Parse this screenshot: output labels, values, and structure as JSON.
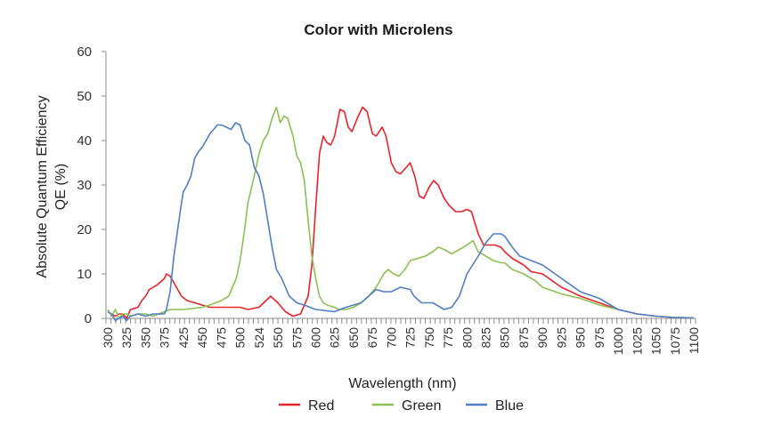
{
  "chart_data": {
    "type": "line",
    "title": "Color with Microlens",
    "xlabel": "Wavelength (nm)",
    "ylabel_line1": "Absolute Quantum Efficiency",
    "ylabel_line2": "QE (%)",
    "ylim": [
      0,
      60
    ],
    "yticks": [
      "0",
      "10",
      "20",
      "30",
      "40",
      "50",
      "60"
    ],
    "ytick_values": [
      0,
      10,
      20,
      30,
      40,
      50,
      60
    ],
    "x_tick_labels": [
      "300",
      "325",
      "350",
      "375",
      "425",
      "450",
      "475",
      "500",
      "524",
      "550",
      "575",
      "600",
      "625",
      "650",
      "675",
      "700",
      "725",
      "750",
      "775",
      "800",
      "825",
      "850",
      "875",
      "900",
      "925",
      "950",
      "975",
      "1000",
      "1025",
      "1050",
      "1075",
      "1100"
    ],
    "x_tick_values": [
      300,
      325,
      350,
      375,
      425,
      450,
      475,
      500,
      524,
      550,
      575,
      600,
      625,
      650,
      675,
      700,
      725,
      750,
      775,
      800,
      825,
      850,
      875,
      900,
      925,
      950,
      975,
      1000,
      1025,
      1050,
      1075,
      1100
    ],
    "grid": false,
    "legend_position": "bottom",
    "series": [
      {
        "name": "Red",
        "color": "#e8242a",
        "points": [
          [
            300,
            1.5
          ],
          [
            305,
            1
          ],
          [
            310,
            0.5
          ],
          [
            315,
            1
          ],
          [
            320,
            1
          ],
          [
            325,
            0
          ],
          [
            330,
            2
          ],
          [
            340,
            2.5
          ],
          [
            345,
            4
          ],
          [
            350,
            5
          ],
          [
            355,
            6.5
          ],
          [
            360,
            7
          ],
          [
            365,
            7.5
          ],
          [
            375,
            9
          ],
          [
            380,
            10
          ],
          [
            390,
            9.5
          ],
          [
            400,
            8
          ],
          [
            410,
            6.5
          ],
          [
            420,
            5
          ],
          [
            430,
            4
          ],
          [
            440,
            3.5
          ],
          [
            450,
            3
          ],
          [
            460,
            2.5
          ],
          [
            475,
            2.5
          ],
          [
            480,
            2.5
          ],
          [
            490,
            2.5
          ],
          [
            500,
            2.5
          ],
          [
            510,
            2
          ],
          [
            524,
            2.5
          ],
          [
            540,
            5
          ],
          [
            550,
            3.5
          ],
          [
            560,
            1.5
          ],
          [
            570,
            0.5
          ],
          [
            580,
            1
          ],
          [
            590,
            5
          ],
          [
            595,
            12
          ],
          [
            600,
            25
          ],
          [
            605,
            37
          ],
          [
            610,
            41
          ],
          [
            615,
            39.5
          ],
          [
            620,
            39
          ],
          [
            625,
            41
          ],
          [
            632,
            47
          ],
          [
            638,
            46.5
          ],
          [
            643,
            43
          ],
          [
            648,
            42
          ],
          [
            655,
            45
          ],
          [
            662,
            47.5
          ],
          [
            668,
            46.5
          ],
          [
            675,
            41.5
          ],
          [
            680,
            41
          ],
          [
            688,
            43
          ],
          [
            693,
            41
          ],
          [
            700,
            35
          ],
          [
            706,
            33
          ],
          [
            712,
            32.5
          ],
          [
            720,
            34
          ],
          [
            725,
            35
          ],
          [
            731,
            32
          ],
          [
            737,
            27.5
          ],
          [
            743,
            27
          ],
          [
            750,
            29.5
          ],
          [
            756,
            31
          ],
          [
            762,
            30
          ],
          [
            770,
            27
          ],
          [
            776,
            25.5
          ],
          [
            785,
            24
          ],
          [
            793,
            24
          ],
          [
            800,
            24.5
          ],
          [
            806,
            24
          ],
          [
            815,
            19
          ],
          [
            822,
            16.5
          ],
          [
            830,
            16.5
          ],
          [
            837,
            16.5
          ],
          [
            845,
            16
          ],
          [
            850,
            15
          ],
          [
            860,
            13.5
          ],
          [
            875,
            12
          ],
          [
            885,
            10.5
          ],
          [
            900,
            10
          ],
          [
            925,
            7
          ],
          [
            950,
            5
          ],
          [
            975,
            3.5
          ],
          [
            1000,
            2
          ],
          [
            1025,
            1
          ],
          [
            1050,
            0.5
          ],
          [
            1075,
            0.2
          ],
          [
            1100,
            0.1
          ]
        ]
      },
      {
        "name": "Green",
        "color": "#8cc152",
        "points": [
          [
            300,
            2
          ],
          [
            305,
            0.5
          ],
          [
            310,
            2
          ],
          [
            315,
            0
          ],
          [
            320,
            1
          ],
          [
            325,
            1
          ],
          [
            330,
            0.5
          ],
          [
            340,
            1
          ],
          [
            350,
            1
          ],
          [
            360,
            0.5
          ],
          [
            375,
            1.5
          ],
          [
            390,
            2
          ],
          [
            400,
            2
          ],
          [
            425,
            2
          ],
          [
            450,
            2.5
          ],
          [
            460,
            3
          ],
          [
            475,
            4
          ],
          [
            485,
            5
          ],
          [
            495,
            9
          ],
          [
            500,
            13
          ],
          [
            505,
            19
          ],
          [
            510,
            26
          ],
          [
            518,
            32
          ],
          [
            524,
            37
          ],
          [
            530,
            40
          ],
          [
            536,
            41.5
          ],
          [
            542,
            45
          ],
          [
            548,
            47.5
          ],
          [
            553,
            44
          ],
          [
            558,
            45.5
          ],
          [
            563,
            45
          ],
          [
            570,
            41
          ],
          [
            575,
            36.5
          ],
          [
            580,
            35
          ],
          [
            585,
            31
          ],
          [
            590,
            22
          ],
          [
            595,
            14
          ],
          [
            600,
            9
          ],
          [
            605,
            5
          ],
          [
            610,
            3.5
          ],
          [
            615,
            3
          ],
          [
            625,
            2.5
          ],
          [
            630,
            2
          ],
          [
            640,
            2
          ],
          [
            650,
            2.5
          ],
          [
            660,
            3.5
          ],
          [
            670,
            5
          ],
          [
            680,
            7
          ],
          [
            690,
            10
          ],
          [
            696,
            11
          ],
          [
            703,
            10
          ],
          [
            710,
            9.5
          ],
          [
            718,
            11
          ],
          [
            725,
            13
          ],
          [
            735,
            13.5
          ],
          [
            745,
            14
          ],
          [
            755,
            15
          ],
          [
            762,
            16
          ],
          [
            770,
            15.5
          ],
          [
            780,
            14.5
          ],
          [
            790,
            15.5
          ],
          [
            800,
            16.5
          ],
          [
            808,
            17.5
          ],
          [
            815,
            15
          ],
          [
            825,
            14
          ],
          [
            835,
            13
          ],
          [
            845,
            12.5
          ],
          [
            850,
            12.5
          ],
          [
            860,
            11
          ],
          [
            875,
            10
          ],
          [
            890,
            8.5
          ],
          [
            900,
            7
          ],
          [
            925,
            5.5
          ],
          [
            950,
            4.5
          ],
          [
            975,
            3
          ],
          [
            1000,
            2
          ],
          [
            1025,
            1
          ],
          [
            1050,
            0.5
          ],
          [
            1075,
            0.2
          ],
          [
            1100,
            0.1
          ]
        ]
      },
      {
        "name": "Blue",
        "color": "#4f7fc4",
        "points": [
          [
            300,
            1.5
          ],
          [
            305,
            1
          ],
          [
            310,
            -0.5
          ],
          [
            315,
            0
          ],
          [
            320,
            0.5
          ],
          [
            325,
            -0.5
          ],
          [
            330,
            0.5
          ],
          [
            340,
            1
          ],
          [
            350,
            0.5
          ],
          [
            360,
            1
          ],
          [
            375,
            1
          ],
          [
            380,
            2
          ],
          [
            390,
            6
          ],
          [
            400,
            14
          ],
          [
            410,
            20
          ],
          [
            420,
            26
          ],
          [
            425,
            28.5
          ],
          [
            430,
            30
          ],
          [
            435,
            32
          ],
          [
            440,
            36
          ],
          [
            445,
            37.5
          ],
          [
            450,
            38.5
          ],
          [
            455,
            40
          ],
          [
            460,
            41.5
          ],
          [
            465,
            42.5
          ],
          [
            470,
            43.5
          ],
          [
            475,
            43.5
          ],
          [
            482,
            43
          ],
          [
            488,
            42.5
          ],
          [
            494,
            44
          ],
          [
            500,
            43.5
          ],
          [
            506,
            40
          ],
          [
            512,
            39
          ],
          [
            518,
            34
          ],
          [
            524,
            32
          ],
          [
            530,
            28
          ],
          [
            536,
            22
          ],
          [
            542,
            16
          ],
          [
            548,
            11
          ],
          [
            555,
            9
          ],
          [
            560,
            7
          ],
          [
            565,
            5
          ],
          [
            575,
            3.5
          ],
          [
            585,
            3
          ],
          [
            600,
            2
          ],
          [
            625,
            1.5
          ],
          [
            640,
            2.5
          ],
          [
            650,
            3
          ],
          [
            660,
            3.5
          ],
          [
            670,
            5
          ],
          [
            680,
            6.5
          ],
          [
            690,
            6
          ],
          [
            700,
            6
          ],
          [
            712,
            7
          ],
          [
            725,
            6.5
          ],
          [
            730,
            5
          ],
          [
            740,
            3.5
          ],
          [
            755,
            3.5
          ],
          [
            770,
            2
          ],
          [
            780,
            2.5
          ],
          [
            790,
            5
          ],
          [
            800,
            10
          ],
          [
            815,
            14
          ],
          [
            825,
            17
          ],
          [
            835,
            19
          ],
          [
            845,
            19
          ],
          [
            850,
            18.5
          ],
          [
            860,
            16
          ],
          [
            870,
            14
          ],
          [
            885,
            13
          ],
          [
            900,
            12
          ],
          [
            925,
            9
          ],
          [
            950,
            6
          ],
          [
            975,
            4.5
          ],
          [
            1000,
            2
          ],
          [
            1025,
            1
          ],
          [
            1050,
            0.5
          ],
          [
            1075,
            0.2
          ],
          [
            1100,
            0.1
          ]
        ]
      }
    ]
  }
}
